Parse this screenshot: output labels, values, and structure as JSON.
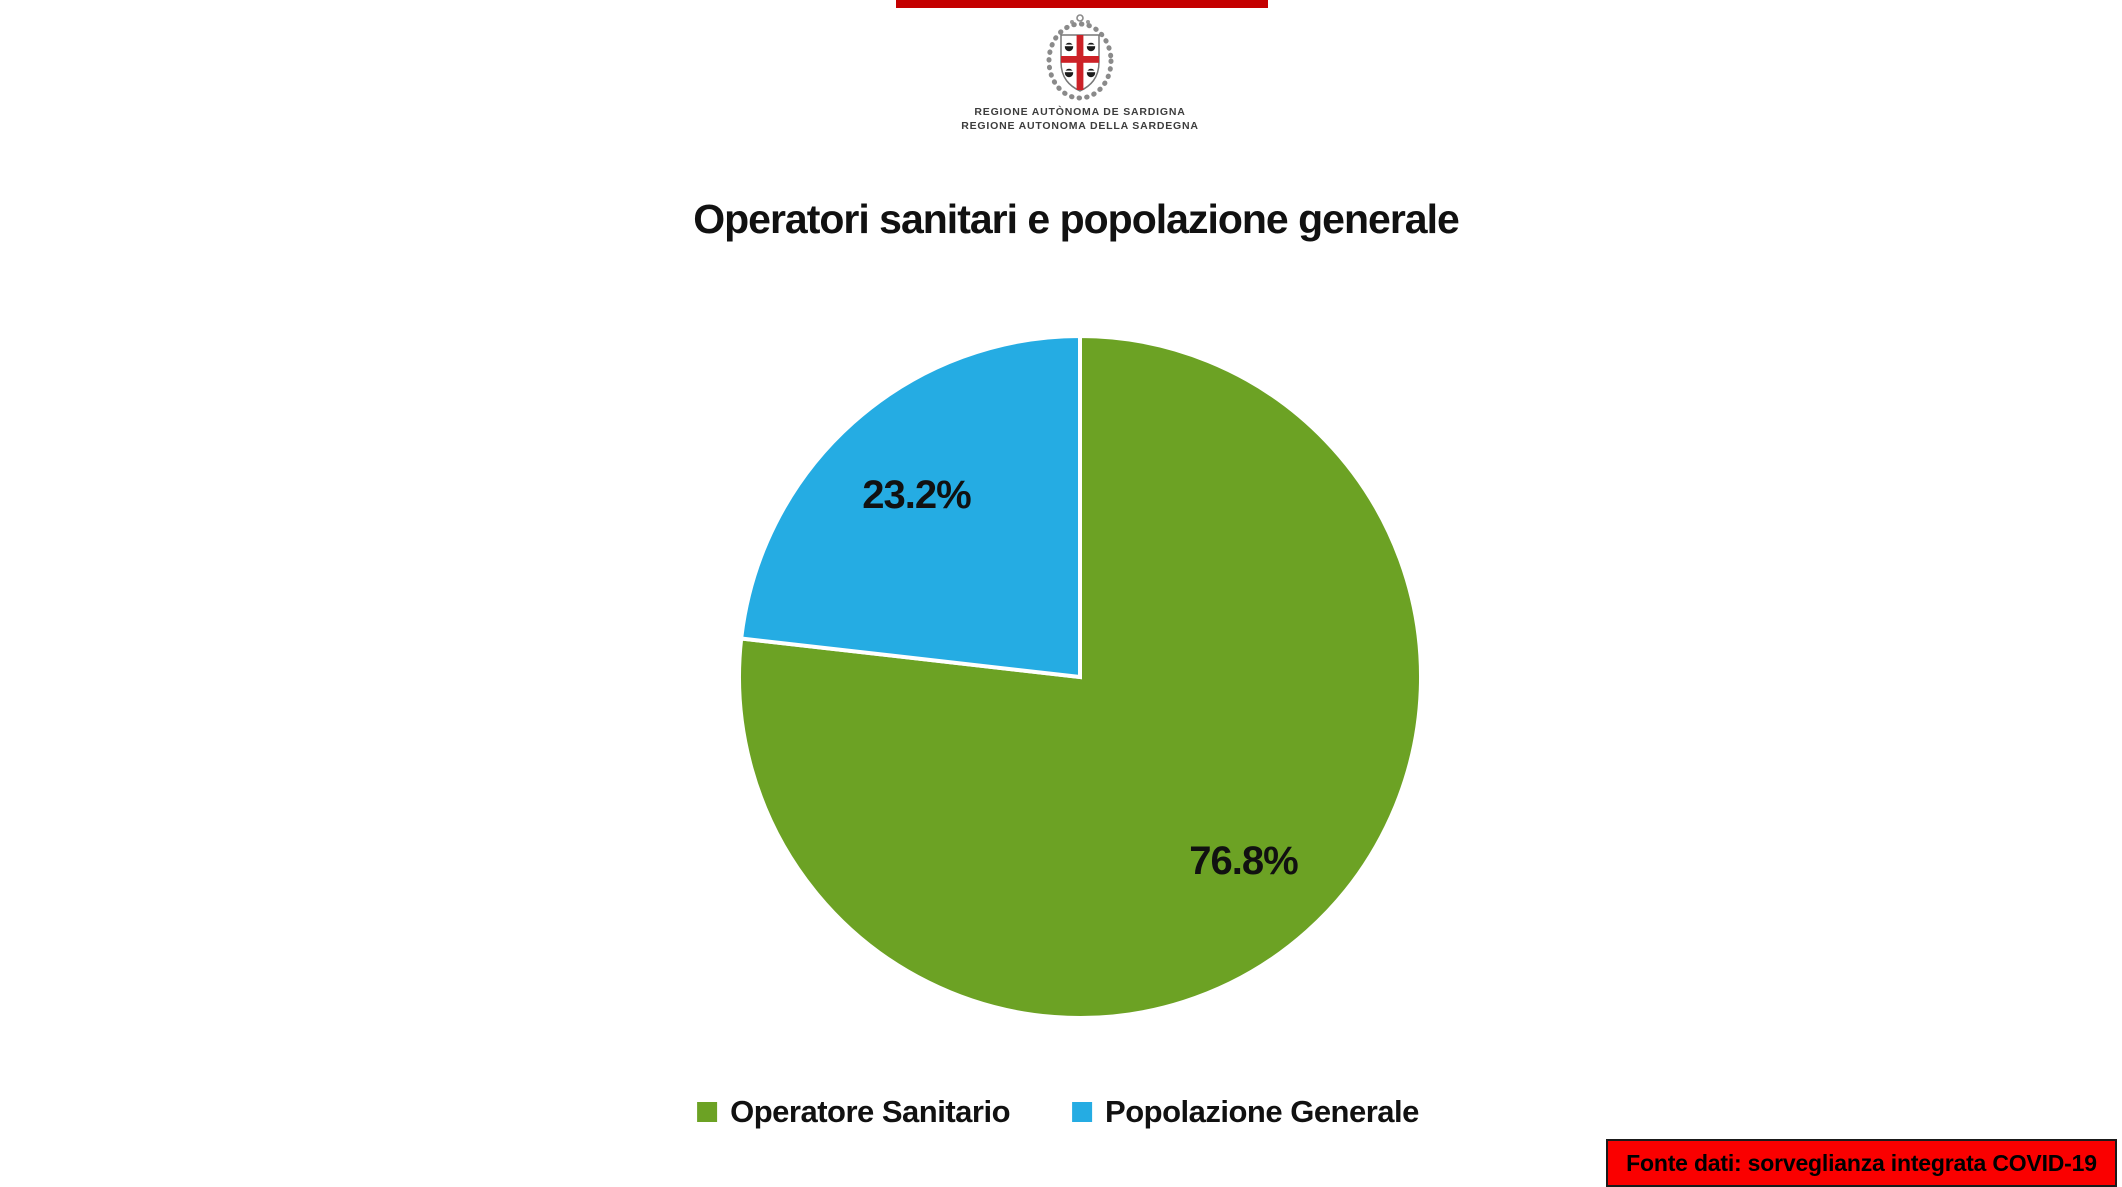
{
  "top_strip": {
    "color": "#C40000"
  },
  "logo": {
    "name": "Stemma Regione Sardegna",
    "caption_line1": "REGIONE AUTÒNOMA DE SARDIGNA",
    "caption_line2": "REGIONE AUTONOMA DELLA SARDEGNA",
    "cross_color": "#CC2127",
    "ornament_color": "#8a8a8a"
  },
  "chart_data": {
    "type": "pie",
    "title": "Operatori sanitari e popolazione generale",
    "categories": [
      "Operatore Sanitario",
      "Popolazione Generale"
    ],
    "values": [
      76.8,
      23.2
    ],
    "slices": [
      {
        "label": "Operatore Sanitario",
        "value": 76.8,
        "display": "76.8%",
        "color": "#6CA224"
      },
      {
        "label": "Popolazione Generale",
        "value": 23.2,
        "display": "23.2%",
        "color": "#25ACE3"
      }
    ],
    "start_angle_deg": 0,
    "direction": "clockwise",
    "separator_color": "#FFFFFF",
    "label_color": "#111111",
    "legend_position": "bottom"
  },
  "footer": {
    "source_label": "Fonte dati: sorveglianza integrata COVID-19",
    "background": "#FA0000",
    "text_color": "#000000",
    "border_color": "#1a1a1a"
  }
}
